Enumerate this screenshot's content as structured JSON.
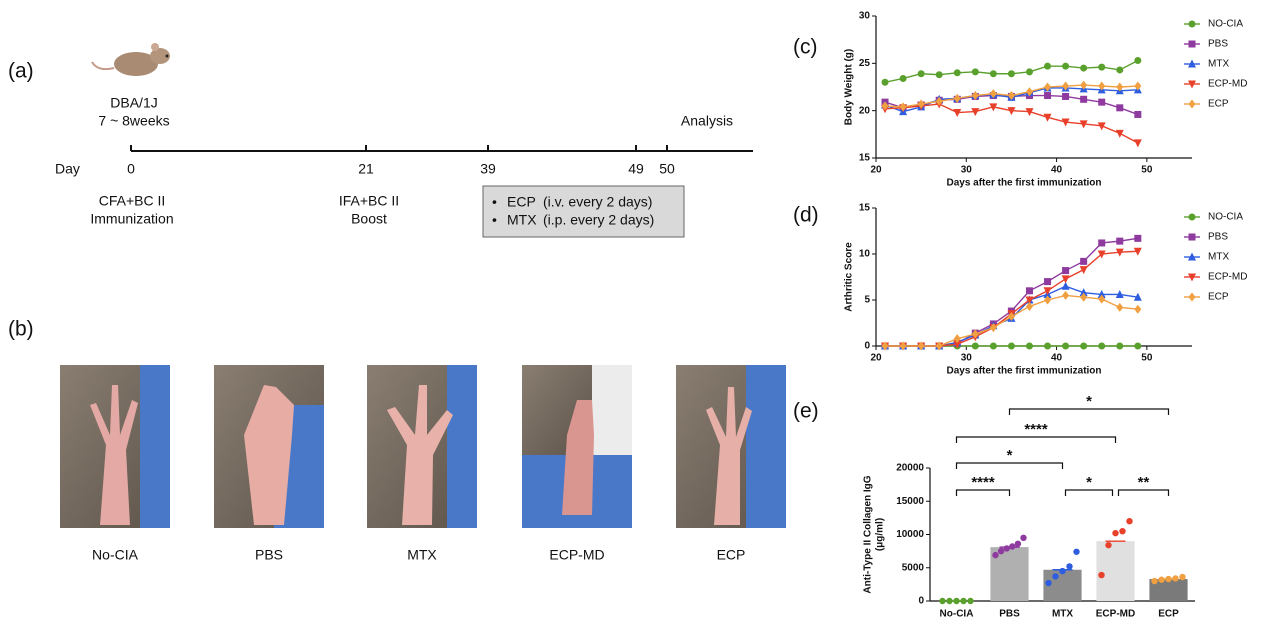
{
  "panel_labels": [
    "(a)",
    "(b)",
    "(c)",
    "(d)",
    "(e)"
  ],
  "timeline": {
    "strain": "DBA/1J",
    "age": "7 ~ 8weeks",
    "analysis": "Analysis",
    "day_label": "Day",
    "days": [
      "0",
      "21",
      "39",
      "49",
      "50"
    ],
    "events": [
      [
        "CFA+BC II",
        "Immunization"
      ],
      [
        "IFA+BC II",
        "Boost"
      ]
    ],
    "treatments": [
      "ECP",
      "MTX"
    ],
    "treatment_notes": [
      "(i.v. every 2 days)",
      "(i.p. every 2 days)"
    ]
  },
  "photos": {
    "labels": [
      "No-CIA",
      "PBS",
      "MTX",
      "ECP-MD",
      "ECP"
    ]
  },
  "chart_data": [
    {
      "type": "line",
      "ylabel": "Body Weight (g)",
      "xlabel": "Days after the first immunization",
      "x": [
        21,
        23,
        25,
        27,
        29,
        31,
        33,
        35,
        37,
        39,
        41,
        43,
        45,
        47,
        49
      ],
      "xlim": [
        20,
        55
      ],
      "xticks": [
        20,
        30,
        40,
        50
      ],
      "ylim": [
        15,
        30
      ],
      "yticks": [
        15,
        20,
        25,
        30
      ],
      "legend": "right",
      "series": [
        {
          "name": "NO-CIA",
          "color": "#5aa02c",
          "marker": "circle",
          "values": [
            23.0,
            23.4,
            23.9,
            23.8,
            24.0,
            24.1,
            23.9,
            23.9,
            24.1,
            24.7,
            24.7,
            24.5,
            24.6,
            24.3,
            25.3
          ]
        },
        {
          "name": "PBS",
          "color": "#8e3a9e",
          "marker": "square",
          "values": [
            20.9,
            20.3,
            20.6,
            21.1,
            21.2,
            21.5,
            21.6,
            21.5,
            21.6,
            21.6,
            21.5,
            21.2,
            20.9,
            20.3,
            19.6
          ]
        },
        {
          "name": "MTX",
          "color": "#2e5de0",
          "marker": "triangle-up",
          "values": [
            20.6,
            19.9,
            20.4,
            21.2,
            21.3,
            21.6,
            21.7,
            21.4,
            21.9,
            22.4,
            22.4,
            22.3,
            22.2,
            22.1,
            22.2
          ]
        },
        {
          "name": "ECP-MD",
          "color": "#e8402a",
          "marker": "triangle-down",
          "values": [
            20.2,
            20.3,
            20.5,
            20.7,
            19.8,
            19.9,
            20.4,
            20.0,
            19.9,
            19.3,
            18.8,
            18.6,
            18.4,
            17.6,
            16.6
          ]
        },
        {
          "name": "ECP",
          "color": "#f0a040",
          "marker": "diamond",
          "values": [
            20.5,
            20.4,
            20.7,
            21.0,
            21.3,
            21.6,
            21.8,
            21.6,
            22.0,
            22.5,
            22.6,
            22.7,
            22.6,
            22.5,
            22.6
          ]
        }
      ]
    },
    {
      "type": "line",
      "ylabel": "Arthritic  Score",
      "xlabel": "Days after the first immunization",
      "x": [
        21,
        23,
        25,
        27,
        29,
        31,
        33,
        35,
        37,
        39,
        41,
        43,
        45,
        47,
        49
      ],
      "xlim": [
        20,
        55
      ],
      "xticks": [
        20,
        30,
        40,
        50
      ],
      "ylim": [
        0,
        15
      ],
      "yticks": [
        0,
        5,
        10,
        15
      ],
      "legend": "right",
      "series": [
        {
          "name": "NO-CIA",
          "color": "#5aa02c",
          "marker": "circle",
          "values": [
            0,
            0,
            0,
            0,
            0,
            0,
            0,
            0,
            0,
            0,
            0,
            0,
            0,
            0,
            0
          ]
        },
        {
          "name": "PBS",
          "color": "#8e3a9e",
          "marker": "square",
          "values": [
            0,
            0,
            0,
            0,
            0.3,
            1.4,
            2.4,
            3.8,
            6.0,
            7.0,
            8.2,
            9.2,
            11.2,
            11.4,
            11.7
          ]
        },
        {
          "name": "MTX",
          "color": "#2e5de0",
          "marker": "triangle-up",
          "values": [
            0,
            0,
            0,
            0,
            0.4,
            1.2,
            2.2,
            3.0,
            5.0,
            5.6,
            6.5,
            5.8,
            5.6,
            5.6,
            5.3
          ]
        },
        {
          "name": "ECP-MD",
          "color": "#e8402a",
          "marker": "triangle-down",
          "values": [
            0,
            0,
            0,
            0,
            0.2,
            1.0,
            2.0,
            3.5,
            5.0,
            6.0,
            7.3,
            8.3,
            10.0,
            10.2,
            10.3
          ]
        },
        {
          "name": "ECP",
          "color": "#f0a040",
          "marker": "diamond",
          "values": [
            0,
            0,
            0,
            0,
            0.8,
            1.3,
            2.0,
            3.2,
            4.3,
            5.0,
            5.5,
            5.3,
            5.1,
            4.2,
            4.0
          ]
        }
      ]
    },
    {
      "type": "bar",
      "ylabel": [
        "Anti-Type II Collagen IgG",
        "(μg/ml)"
      ],
      "categories": [
        "No-CIA",
        "PBS",
        "MTX",
        "ECP-MD",
        "ECP"
      ],
      "values": [
        0,
        8100,
        4700,
        9000,
        3300
      ],
      "colors": [
        "#cfe3c0",
        "#b0b0b0",
        "#8c8c8c",
        "#e0e0e0",
        "#7a7a7a"
      ],
      "points": [
        [
          0,
          0,
          0,
          0,
          0
        ],
        [
          6900,
          7500,
          7900,
          8200,
          8600,
          9500
        ],
        [
          2700,
          3700,
          4500,
          5200,
          7400
        ],
        [
          3900,
          8400,
          10200,
          10500,
          12000
        ],
        [
          3000,
          3200,
          3300,
          3400,
          3600
        ]
      ],
      "point_colors": [
        "#5aa02c",
        "#8e3a9e",
        "#2e5de0",
        "#e8402a",
        "#f0a040"
      ],
      "ylim": [
        0,
        20000
      ],
      "yticks": [
        0,
        5000,
        10000,
        15000,
        20000
      ],
      "annotations": [
        "*",
        "****",
        "*",
        "****",
        "*",
        "**"
      ]
    }
  ]
}
